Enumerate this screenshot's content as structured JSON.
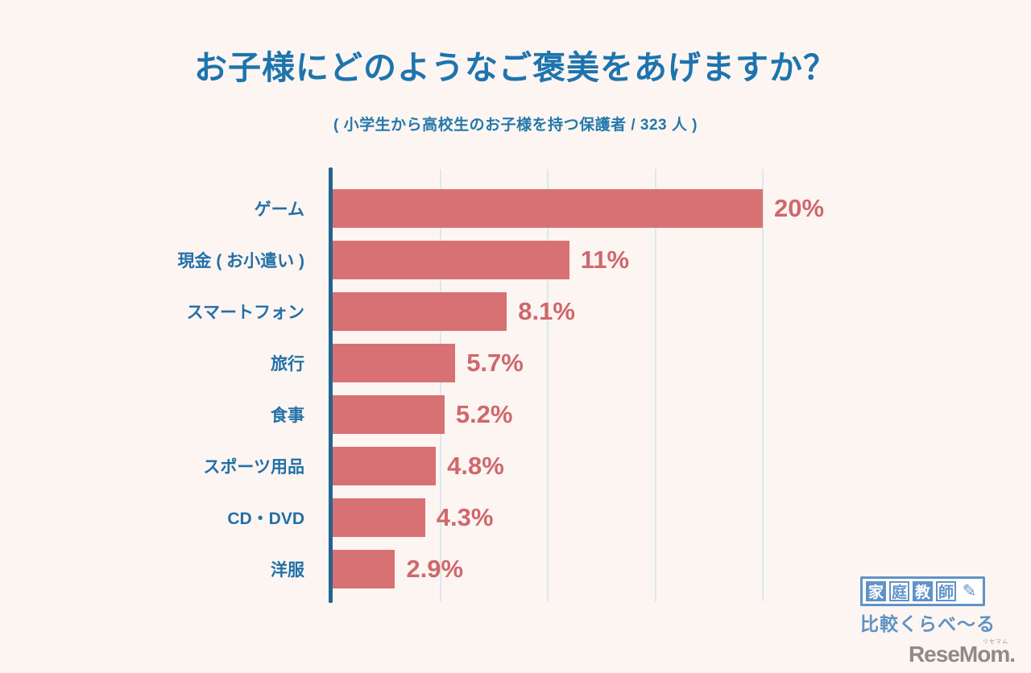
{
  "title": "お子様にどのようなご褒美をあげますか？",
  "subtitle": "( 小学生から高校生のお子様を持つ保護者 / 323 人 )",
  "chart_data": {
    "type": "bar",
    "orientation": "horizontal",
    "title": "お子様にどのようなご褒美をあげますか？",
    "subtitle": "( 小学生から高校生のお子様を持つ保護者 / 323 人 )",
    "sample_size": "323",
    "categories": [
      "ゲーム",
      "現金 ( お小遣い )",
      "スマートフォン",
      "旅行",
      "食事",
      "スポーツ用品",
      "CD・DVD",
      "洋服"
    ],
    "values": [
      20,
      11,
      8.1,
      5.7,
      5.2,
      4.8,
      4.3,
      2.9
    ],
    "value_labels": [
      "20%",
      "11%",
      "8.1%",
      "5.7%",
      "5.2%",
      "4.8%",
      "4.3%",
      "2.9%"
    ],
    "xlabel": "",
    "ylabel": "",
    "xlim": [
      0,
      20
    ],
    "gridlines_percent": [
      5,
      10,
      15,
      20
    ],
    "grid": true,
    "legend": "none",
    "bar_color": "#d87173",
    "value_label_color": "#cf686d",
    "category_label_color": "#2270a8",
    "axis_color": "#246490",
    "gridline_color": "#d8eaed"
  },
  "colors": {
    "background": "#fdf5f2",
    "title_blue": "#1d74ae",
    "logo_blue": "#6093c6",
    "watermark_gray": "#8e8a88"
  },
  "branding": {
    "logo_tiles": [
      "家",
      "庭",
      "教",
      "師"
    ],
    "logo_pencil_icon": "✎",
    "logo_subtext": "比較くらべ～る",
    "watermark": "ReseMom.",
    "watermark_ruby": "リセマム"
  }
}
